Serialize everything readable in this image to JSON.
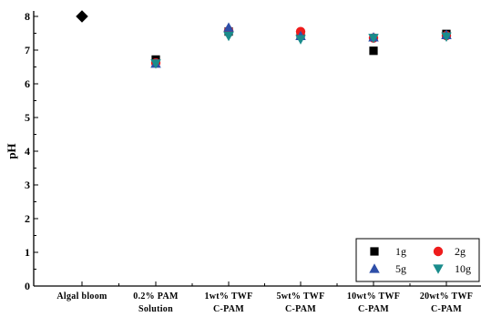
{
  "chart_data": {
    "type": "scatter",
    "categories": [
      [
        "Algal bloom"
      ],
      [
        "0.2% PAM",
        "Solution"
      ],
      [
        "1wt% TWF",
        "C-PAM"
      ],
      [
        "5wt% TWF",
        "C-PAM"
      ],
      [
        "10wt% TWF",
        "C-PAM"
      ],
      [
        "20wt% TWF",
        "C-PAM"
      ]
    ],
    "xlabel": "",
    "ylabel": "pH",
    "ylim": [
      0,
      8
    ],
    "yticks": [
      0,
      1,
      2,
      3,
      4,
      5,
      6,
      7,
      8
    ],
    "grid": false,
    "legend_position": "bottom-right",
    "baseline": {
      "name": "",
      "marker": "diamond",
      "color": "#000000",
      "values": [
        8.0,
        null,
        null,
        null,
        null,
        null
      ]
    },
    "series": [
      {
        "name": "1g",
        "marker": "square",
        "color": "#000000",
        "values": [
          null,
          6.72,
          7.55,
          7.45,
          6.98,
          7.48
        ]
      },
      {
        "name": "2g",
        "marker": "circle",
        "color": "#ee1c1c",
        "values": [
          null,
          6.62,
          7.57,
          7.55,
          7.36,
          7.43
        ]
      },
      {
        "name": "5g",
        "marker": "triangle-up",
        "color": "#2e4ea8",
        "values": [
          null,
          6.6,
          7.67,
          7.42,
          7.38,
          7.45
        ]
      },
      {
        "name": "10g",
        "marker": "triangle-down",
        "color": "#1a8c8c",
        "values": [
          null,
          6.6,
          7.42,
          7.32,
          7.36,
          7.4
        ]
      }
    ]
  }
}
